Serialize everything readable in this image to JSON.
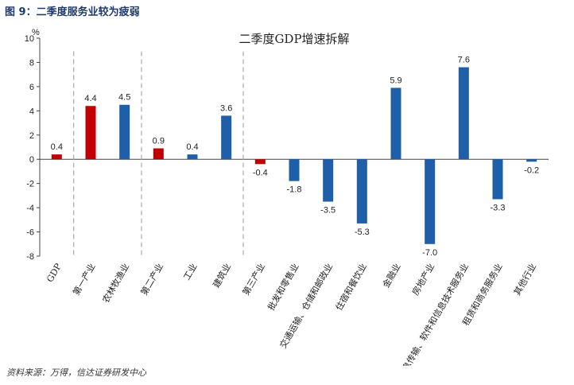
{
  "figure_title": "图 9：二季度服务业较为疲弱",
  "source": "资料来源：万得，信达证券研发中心",
  "colors": {
    "secondary_red": "#c00000",
    "primary_blue": "#1f5fa8"
  },
  "chart_data": {
    "type": "bar",
    "title": "二季度GDP增速拆解",
    "ylabel": "%",
    "xlabel": "",
    "ylim": [
      -8,
      10
    ],
    "yticks": [
      -8,
      -6,
      -4,
      -2,
      0,
      2,
      4,
      6,
      8,
      10
    ],
    "grid": false,
    "legend": "none",
    "categories": [
      "GDP",
      "第一产业",
      "农林牧渔业",
      "第二产业",
      "工业",
      "建筑业",
      "第三产业",
      "批发和零售业",
      "交通运输、仓储和邮政业",
      "住宿和餐饮业",
      "金融业",
      "房地产业",
      "信息传输、软件和信息技术服务业",
      "租赁和商务服务业",
      "其他行业"
    ],
    "values": [
      0.4,
      4.4,
      4.5,
      0.9,
      0.4,
      3.6,
      -0.4,
      -1.8,
      -3.5,
      -5.3,
      5.9,
      -7.0,
      7.6,
      -3.3,
      -0.2
    ],
    "value_labels": [
      "0.4",
      "4.4",
      "4.5",
      "0.9",
      "0.4",
      "3.6",
      "-0.4",
      "-1.8",
      "-3.5",
      "-5.3",
      "5.9",
      "-7.0",
      "7.6",
      "-3.3",
      "-0.2"
    ],
    "bar_colors": [
      "red",
      "red",
      "blue",
      "red",
      "blue",
      "blue",
      "red",
      "blue",
      "blue",
      "blue",
      "blue",
      "blue",
      "blue",
      "blue",
      "blue"
    ],
    "separators_after_category": [
      "GDP",
      "农林牧渔业",
      "建筑业"
    ]
  }
}
